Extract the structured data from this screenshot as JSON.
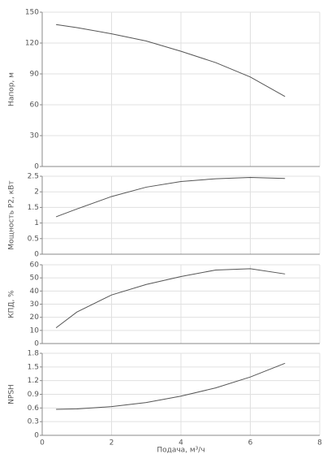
{
  "chart_data": [
    {
      "type": "line",
      "ylabel": "Напор, м",
      "x": [
        0.4,
        1,
        2,
        3,
        4,
        5,
        6,
        7
      ],
      "series": [
        {
          "color": "#555555",
          "values": [
            138,
            135,
            129,
            122,
            112,
            101,
            87,
            68
          ]
        }
      ],
      "xlim": [
        0,
        8
      ],
      "xticks": [
        0,
        2,
        4,
        6,
        8
      ],
      "ylim": [
        0,
        150
      ],
      "yticks": [
        0,
        30,
        60,
        90,
        120,
        150
      ],
      "grid": true
    },
    {
      "type": "line",
      "ylabel": "Мощность P2, кВт",
      "x": [
        0.4,
        1,
        2,
        3,
        4,
        5,
        6,
        7
      ],
      "series": [
        {
          "color": "#555555",
          "values": [
            1.2,
            1.45,
            1.85,
            2.15,
            2.33,
            2.42,
            2.46,
            2.43
          ]
        }
      ],
      "xlim": [
        0,
        8
      ],
      "xticks": [
        0,
        2,
        4,
        6,
        8
      ],
      "ylim": [
        0,
        2.5
      ],
      "yticks": [
        0,
        0.5,
        1,
        1.5,
        2,
        2.5
      ],
      "grid": true
    },
    {
      "type": "line",
      "ylabel": "КПД, %",
      "x": [
        0.4,
        1,
        2,
        3,
        4,
        5,
        6,
        7
      ],
      "series": [
        {
          "color": "#555555",
          "values": [
            12,
            24,
            37,
            45,
            51,
            56,
            57,
            53
          ]
        }
      ],
      "xlim": [
        0,
        8
      ],
      "xticks": [
        0,
        2,
        4,
        6,
        8
      ],
      "ylim": [
        0,
        60
      ],
      "yticks": [
        0,
        10,
        20,
        30,
        40,
        50,
        60
      ],
      "grid": true
    },
    {
      "type": "line",
      "ylabel": "NPSH",
      "xlabel": "Подача, м³/ч",
      "x": [
        0.4,
        1,
        2,
        3,
        4,
        5,
        6,
        7
      ],
      "series": [
        {
          "color": "#555555",
          "values": [
            0.57,
            0.58,
            0.63,
            0.72,
            0.86,
            1.04,
            1.28,
            1.58
          ]
        }
      ],
      "xlim": [
        0,
        8
      ],
      "xticks": [
        0,
        2,
        4,
        6,
        8
      ],
      "ylim": [
        0,
        1.8
      ],
      "yticks": [
        0,
        0.3,
        0.6,
        0.9,
        1.2,
        1.5,
        1.8
      ],
      "grid": true
    }
  ]
}
